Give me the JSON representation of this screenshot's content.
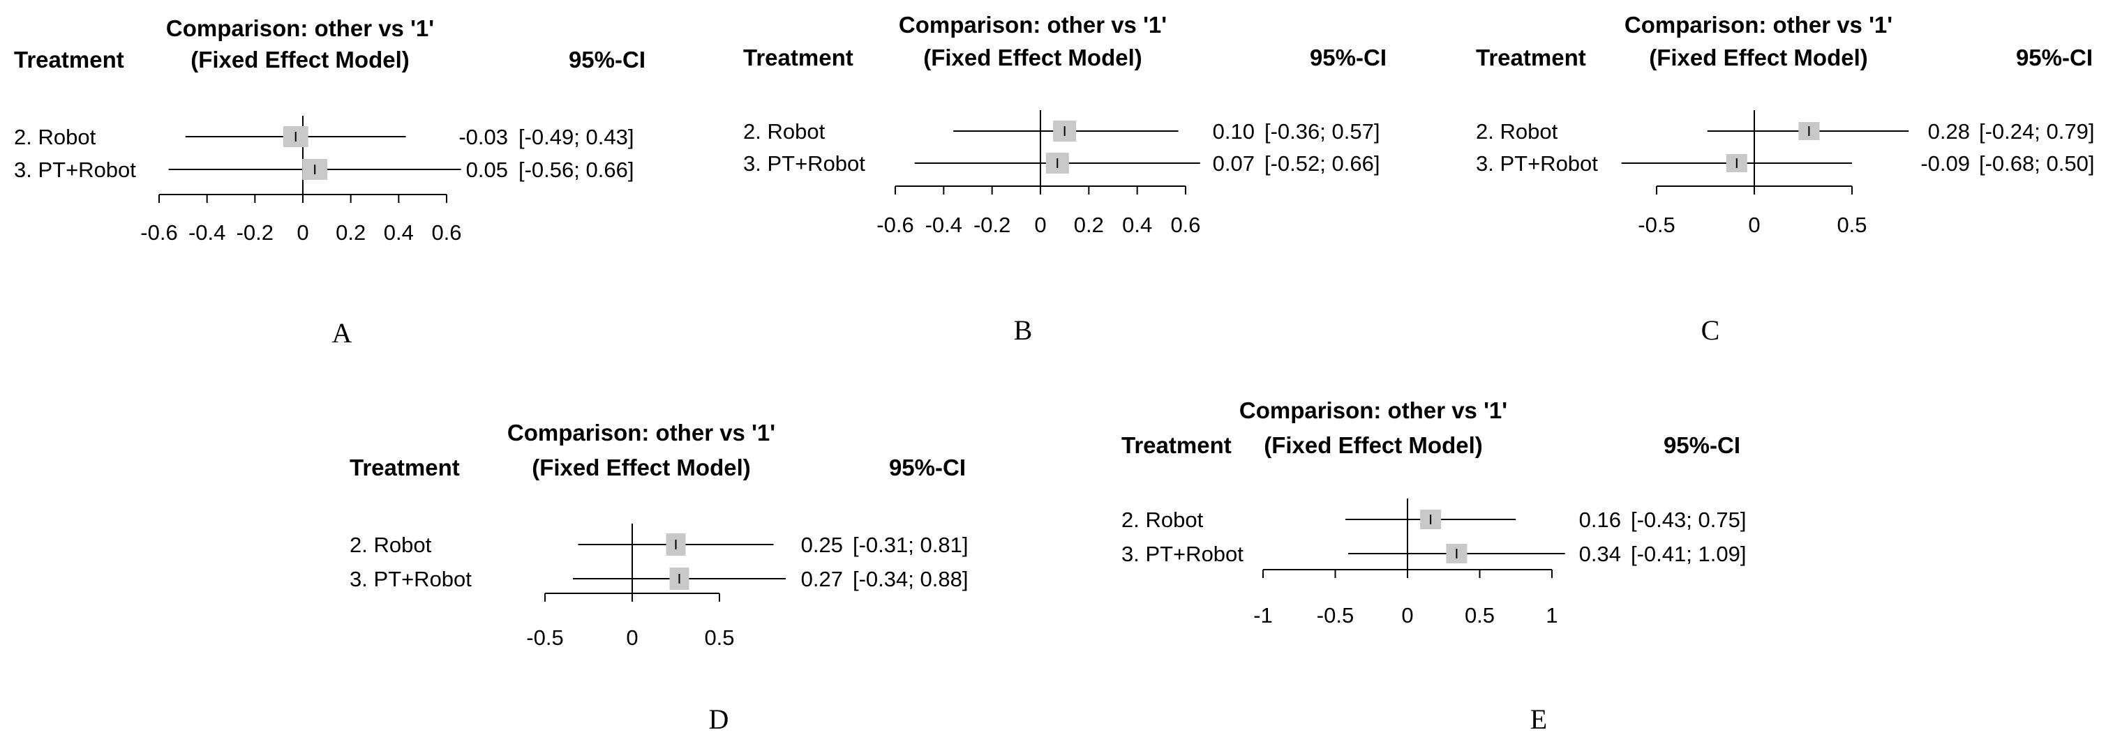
{
  "figure": {
    "colors": {
      "box": "#c8c8c8",
      "line": "#000000",
      "text": "#000000",
      "background": "#ffffff"
    }
  },
  "chart_data": [
    {
      "type": "forest",
      "panel": "A",
      "title_line1": "Comparison: other vs '1'",
      "title_line2": "(Fixed Effect Model)",
      "treatment_header": "Treatment",
      "ci_header": "95%-CI",
      "xlim": [
        -0.6,
        0.6
      ],
      "ticks": [
        -0.6,
        -0.4,
        -0.2,
        0,
        0.2,
        0.4,
        0.6
      ],
      "tick_labels": [
        "-0.6",
        "-0.4",
        "-0.2",
        "0",
        "0.2",
        "0.4",
        "0.6"
      ],
      "rows": [
        {
          "treatment": "2. Robot",
          "estimate": -0.03,
          "lower": -0.49,
          "upper": 0.43,
          "estimate_label": "-0.03",
          "ci_label": "[-0.49; 0.43]"
        },
        {
          "treatment": "3. PT+Robot",
          "estimate": 0.05,
          "lower": -0.56,
          "upper": 0.66,
          "estimate_label": "0.05",
          "ci_label": "[-0.56; 0.66]"
        }
      ]
    },
    {
      "type": "forest",
      "panel": "B",
      "title_line1": "Comparison: other vs '1'",
      "title_line2": "(Fixed Effect Model)",
      "treatment_header": "Treatment",
      "ci_header": "95%-CI",
      "xlim": [
        -0.6,
        0.6
      ],
      "ticks": [
        -0.6,
        -0.4,
        -0.2,
        0,
        0.2,
        0.4,
        0.6
      ],
      "tick_labels": [
        "-0.6",
        "-0.4",
        "-0.2",
        "0",
        "0.2",
        "0.4",
        "0.6"
      ],
      "rows": [
        {
          "treatment": "2. Robot",
          "estimate": 0.1,
          "lower": -0.36,
          "upper": 0.57,
          "estimate_label": "0.10",
          "ci_label": "[-0.36; 0.57]"
        },
        {
          "treatment": "3. PT+Robot",
          "estimate": 0.07,
          "lower": -0.52,
          "upper": 0.66,
          "estimate_label": "0.07",
          "ci_label": "[-0.52; 0.66]"
        }
      ]
    },
    {
      "type": "forest",
      "panel": "C",
      "title_line1": "Comparison: other vs '1'",
      "title_line2": "(Fixed Effect Model)",
      "treatment_header": "Treatment",
      "ci_header": "95%-CI",
      "xlim": [
        -0.5,
        0.5
      ],
      "ticks": [
        -0.5,
        0,
        0.5
      ],
      "tick_labels": [
        "-0.5",
        "0",
        "0.5"
      ],
      "rows": [
        {
          "treatment": "2. Robot",
          "estimate": 0.28,
          "lower": -0.24,
          "upper": 0.79,
          "estimate_label": "0.28",
          "ci_label": "[-0.24; 0.79]"
        },
        {
          "treatment": "3. PT+Robot",
          "estimate": -0.09,
          "lower": -0.68,
          "upper": 0.5,
          "estimate_label": "-0.09",
          "ci_label": "[-0.68; 0.50]"
        }
      ]
    },
    {
      "type": "forest",
      "panel": "D",
      "title_line1": "Comparison: other vs '1'",
      "title_line2": "(Fixed Effect Model)",
      "treatment_header": "Treatment",
      "ci_header": "95%-CI",
      "xlim": [
        -0.5,
        0.5
      ],
      "ticks": [
        -0.5,
        0,
        0.5
      ],
      "tick_labels": [
        "-0.5",
        "0",
        "0.5"
      ],
      "rows": [
        {
          "treatment": "2. Robot",
          "estimate": 0.25,
          "lower": -0.31,
          "upper": 0.81,
          "estimate_label": "0.25",
          "ci_label": "[-0.31; 0.81]"
        },
        {
          "treatment": "3. PT+Robot",
          "estimate": 0.27,
          "lower": -0.34,
          "upper": 0.88,
          "estimate_label": "0.27",
          "ci_label": "[-0.34; 0.88]"
        }
      ]
    },
    {
      "type": "forest",
      "panel": "E",
      "title_line1": "Comparison: other vs '1'",
      "title_line2": "(Fixed Effect Model)",
      "treatment_header": "Treatment",
      "ci_header": "95%-CI",
      "xlim": [
        -1,
        1
      ],
      "ticks": [
        -1,
        -0.5,
        0,
        0.5,
        1
      ],
      "tick_labels": [
        "-1",
        "-0.5",
        "0",
        "0.5",
        "1"
      ],
      "rows": [
        {
          "treatment": "2. Robot",
          "estimate": 0.16,
          "lower": -0.43,
          "upper": 0.75,
          "estimate_label": "0.16",
          "ci_label": "[-0.43; 0.75]"
        },
        {
          "treatment": "3. PT+Robot",
          "estimate": 0.34,
          "lower": -0.41,
          "upper": 1.09,
          "estimate_label": "0.34",
          "ci_label": "[-0.41; 1.09]"
        }
      ]
    }
  ]
}
